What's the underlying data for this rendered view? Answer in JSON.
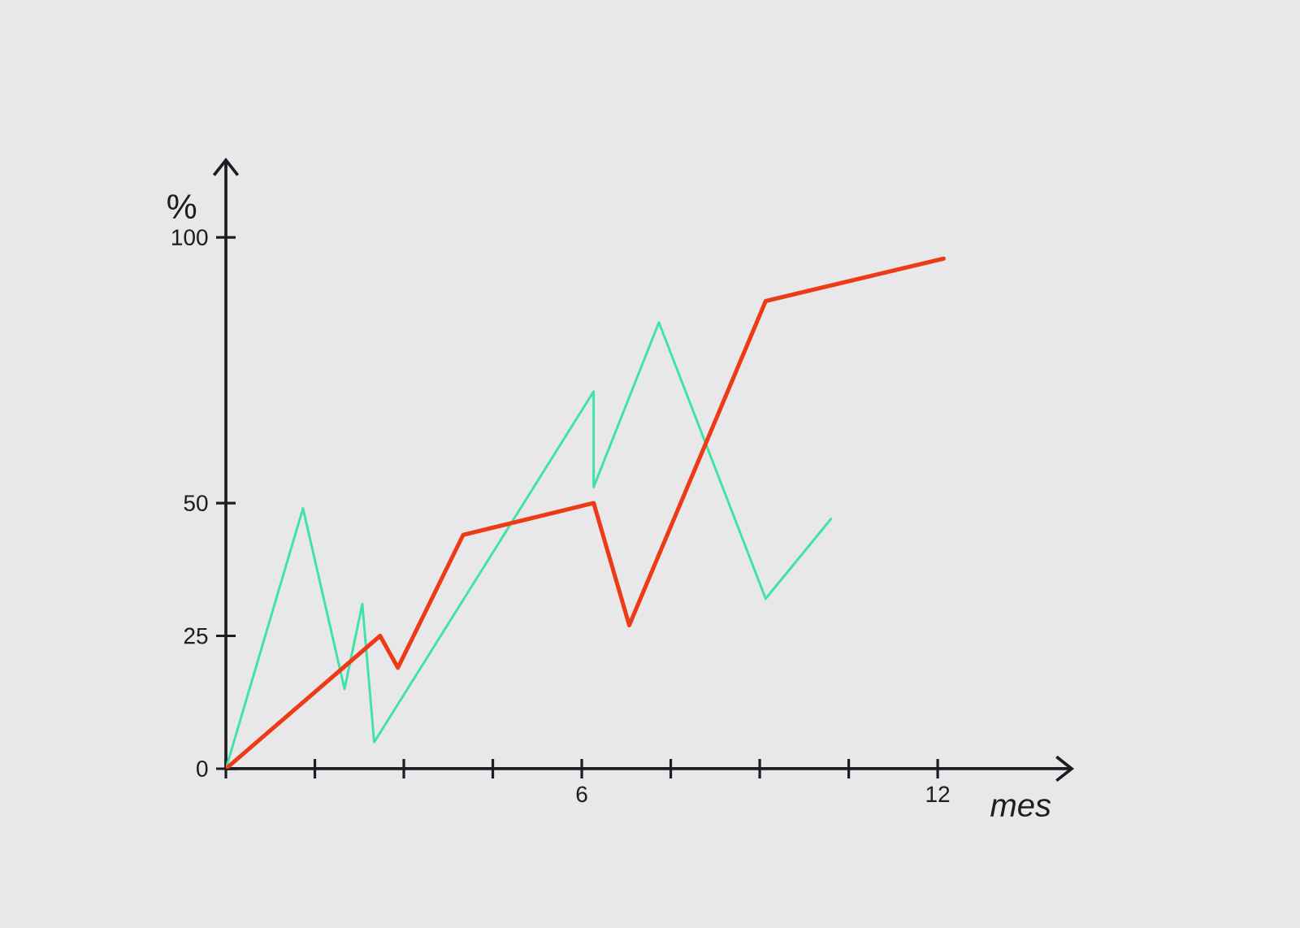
{
  "chart_data": {
    "type": "line",
    "xlabel": "mes",
    "ylabel": "%",
    "xlim": [
      0,
      14.3
    ],
    "ylim": [
      0,
      115
    ],
    "xticks": [
      {
        "value": 0,
        "label": null
      },
      {
        "value": 1.5,
        "label": null
      },
      {
        "value": 3,
        "label": null
      },
      {
        "value": 4.5,
        "label": null
      },
      6,
      {
        "value": 7.5,
        "label": null
      },
      {
        "value": 9,
        "label": null
      },
      {
        "value": 10.5,
        "label": null
      },
      12
    ],
    "yticks": [
      0,
      25,
      50,
      100
    ],
    "series": [
      {
        "color": "#3ee3a6",
        "x": [
          0,
          1.3,
          2.0,
          2.3,
          2.5,
          6.2,
          6.2,
          7.3,
          9.1,
          10.2
        ],
        "values": [
          0,
          49,
          15,
          31,
          5,
          71,
          53,
          84,
          32,
          47
        ]
      },
      {
        "color": "#ec3b16",
        "x": [
          0,
          2.6,
          2.9,
          4.0,
          6.2,
          6.8,
          9.1,
          12.1
        ],
        "values": [
          0,
          25,
          19,
          44,
          50,
          27,
          88,
          96
        ]
      }
    ]
  }
}
